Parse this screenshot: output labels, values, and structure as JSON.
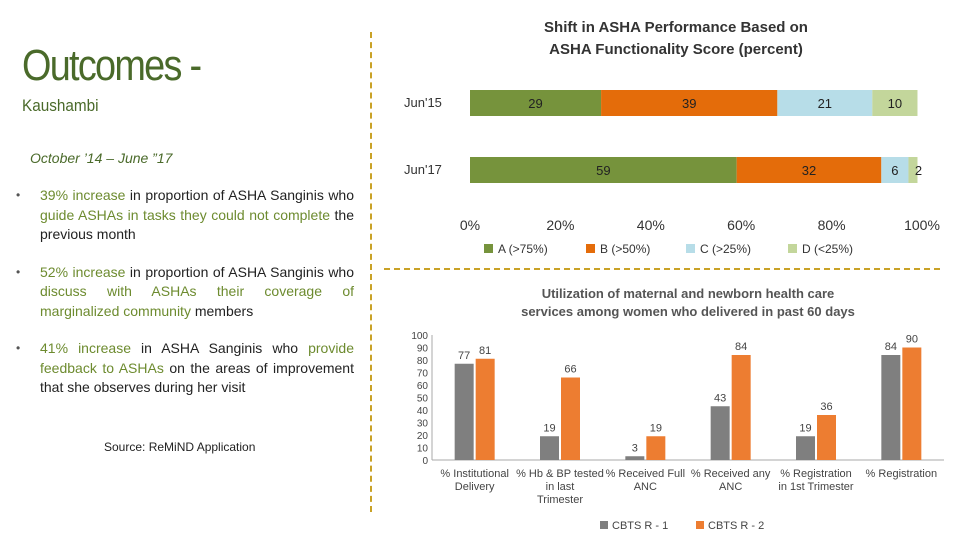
{
  "slide": {
    "title": "Outcomes -",
    "subtitle": "Kaushambi",
    "period": "October ’14 – June ”17",
    "bullets": [
      {
        "pre": "39% increase",
        "mid1": " in proportion of ASHA Sanginis who ",
        "hl2": "guide ASHAs in tasks they could not complete",
        "post": " the previous month"
      },
      {
        "pre": "52% increase",
        "mid1": " in proportion of ASHA Sanginis who ",
        "hl2": "discuss with ASHAs their coverage of marginalized community",
        "post": " members"
      },
      {
        "pre": "41% increase",
        "mid1": " in ASHA Sanginis who ",
        "hl2": "provide feedback to ASHAs",
        "post": " on the areas of improvement that she observes during her visit"
      }
    ],
    "source": "Source: ReMiND Application"
  },
  "colors": {
    "accent_green": "#4a6a2a",
    "divider": "#c9a227",
    "bar_A": "#76933c",
    "bar_B": "#e46c0a",
    "bar_C": "#b7dde8",
    "bar_D": "#c3d69b",
    "bar_grey": "#7f7f7f",
    "bar_orange": "#ed7d31"
  },
  "chart_data": [
    {
      "type": "bar",
      "orientation": "horizontal",
      "stacked": true,
      "title": "Shift in ASHA Performance Based on ASHA Functionality Score (percent)",
      "categories": [
        "Jun'15",
        "Jun'17"
      ],
      "series": [
        {
          "name": "A (>75%)",
          "values": [
            29,
            59
          ]
        },
        {
          "name": "B (>50%)",
          "values": [
            39,
            32
          ]
        },
        {
          "name": "C (>25%)",
          "values": [
            21,
            6
          ]
        },
        {
          "name": "D (<25%)",
          "values": [
            10,
            2
          ]
        }
      ],
      "xlim": [
        0,
        100
      ],
      "xticks": [
        "0%",
        "20%",
        "40%",
        "60%",
        "80%",
        "100%"
      ],
      "legend": "bottom",
      "grid": false
    },
    {
      "type": "bar",
      "title": "Utilization of maternal and newborn health care services among women who delivered in past 60 days",
      "categories": [
        "% Institutional Delivery",
        "% Hb & BP tested in last Trimester",
        "% Received Full ANC",
        "% Received any ANC",
        "% Registration in 1st Trimester",
        "% Registration"
      ],
      "series": [
        {
          "name": "CBTS R - 1",
          "values": [
            77,
            19,
            3,
            43,
            19,
            84
          ]
        },
        {
          "name": "CBTS R - 2",
          "values": [
            81,
            66,
            19,
            84,
            36,
            90
          ]
        }
      ],
      "ylim": [
        0,
        100
      ],
      "yticks": [
        0,
        10,
        20,
        30,
        40,
        50,
        60,
        70,
        80,
        90,
        100
      ],
      "legend": "bottom",
      "grid": false
    }
  ]
}
